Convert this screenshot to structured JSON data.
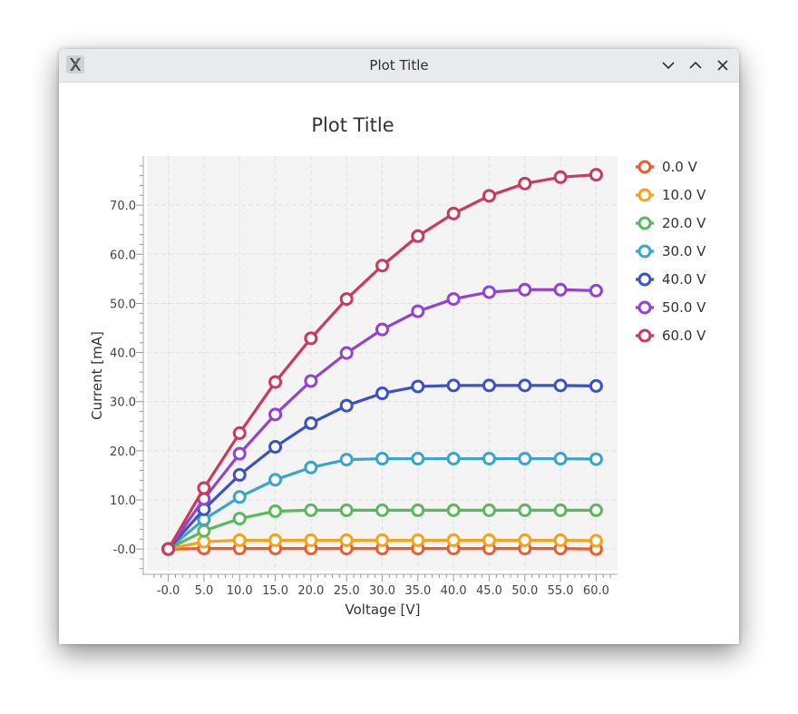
{
  "window": {
    "title": "Plot Title",
    "icon": "x-app-icon",
    "controls": [
      "minimize-chevron-icon",
      "maximize-chevron-icon",
      "close-icon"
    ]
  },
  "chart_data": {
    "type": "line",
    "title": "Plot Title",
    "xlabel": "Voltage [V]",
    "ylabel": "Current [mA]",
    "xlim": [
      -3,
      63
    ],
    "ylim": [
      -4.4,
      80
    ],
    "xticks": [
      0,
      5,
      10,
      15,
      20,
      25,
      30,
      35,
      40,
      45,
      50,
      55,
      60
    ],
    "xtick_labels": [
      "-0.0",
      "5.0",
      "10.0",
      "15.0",
      "20.0",
      "25.0",
      "30.0",
      "35.0",
      "40.0",
      "45.0",
      "50.0",
      "55.0",
      "60.0"
    ],
    "yticks": [
      0,
      10,
      20,
      30,
      40,
      50,
      60,
      70
    ],
    "ytick_labels": [
      "-0.0",
      "10.0",
      "20.0",
      "30.0",
      "40.0",
      "50.0",
      "60.0",
      "70.0"
    ],
    "grid": true,
    "legend": "right",
    "x": [
      0,
      5,
      10,
      15,
      20,
      25,
      30,
      35,
      40,
      45,
      50,
      55,
      60
    ],
    "series": [
      {
        "name": "0.0 V",
        "color": "#ef5b2b",
        "values": [
          0,
          0.1,
          0.1,
          0.1,
          0.1,
          0.1,
          0.1,
          0.1,
          0.1,
          0.1,
          0.1,
          0.1,
          0.0
        ]
      },
      {
        "name": "10.0 V",
        "color": "#f5a21c",
        "values": [
          0,
          1.5,
          1.8,
          1.8,
          1.8,
          1.8,
          1.8,
          1.8,
          1.8,
          1.8,
          1.8,
          1.8,
          1.7
        ]
      },
      {
        "name": "20.0 V",
        "color": "#5cb85c",
        "values": [
          0,
          3.7,
          6.2,
          7.7,
          7.9,
          7.9,
          7.9,
          7.9,
          7.9,
          7.9,
          7.9,
          7.9,
          7.9
        ]
      },
      {
        "name": "30.0 V",
        "color": "#39a5c7",
        "values": [
          0,
          6.0,
          10.6,
          14.1,
          16.6,
          18.2,
          18.4,
          18.4,
          18.4,
          18.4,
          18.4,
          18.4,
          18.3
        ]
      },
      {
        "name": "40.0 V",
        "color": "#3b52c4",
        "values": [
          0,
          8.1,
          15.1,
          20.8,
          25.6,
          29.2,
          31.7,
          33.1,
          33.3,
          33.3,
          33.3,
          33.3,
          33.2
        ]
      },
      {
        "name": "50.0 V",
        "color": "#9443ce",
        "values": [
          0,
          10.2,
          19.4,
          27.4,
          34.2,
          39.9,
          44.7,
          48.4,
          50.9,
          52.3,
          52.8,
          52.8,
          52.6
        ]
      },
      {
        "name": "60.0 V",
        "color": "#c93b5e",
        "values": [
          0,
          12.4,
          23.6,
          34.0,
          42.9,
          50.9,
          57.7,
          63.7,
          68.3,
          71.9,
          74.4,
          75.7,
          76.2
        ]
      }
    ]
  }
}
